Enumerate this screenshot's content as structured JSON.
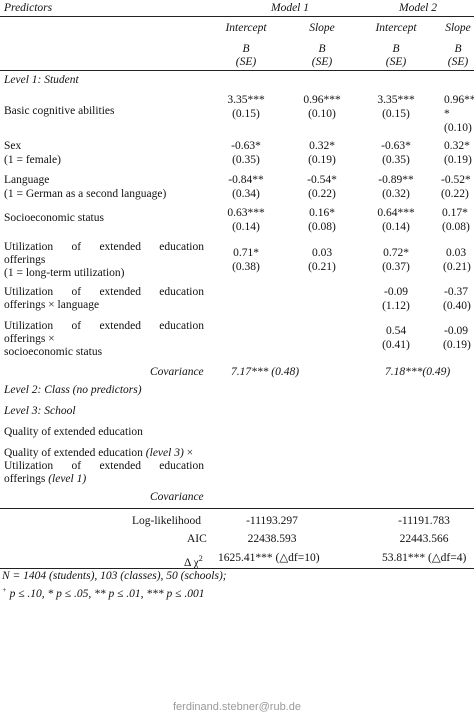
{
  "header": {
    "predictors": "Predictors",
    "models": [
      "Model 1",
      "Model 2"
    ],
    "sub": [
      "Intercept",
      "Slope",
      "Intercept",
      "Slope"
    ],
    "b_label": "B",
    "se_label": "(SE)"
  },
  "sections": {
    "level1": "Level 1: Student",
    "level2": "Level 2: Class (no predictors)",
    "level3": "Level 3: School"
  },
  "rows": {
    "basic": {
      "label": [
        "Basic cognitive abilities"
      ],
      "m1_int": [
        "3.35***",
        "(0.15)"
      ],
      "m1_slope": [
        "0.96***",
        "(0.10)"
      ],
      "m2_int": [
        "3.35***",
        "(0.15)"
      ],
      "m2_slope": [
        "0.96**",
        "*",
        "(0.10)"
      ]
    },
    "sex": {
      "label": [
        "Sex",
        "(1 = female)"
      ],
      "m1_int": [
        "-0.63*",
        "(0.35)"
      ],
      "m1_slope": [
        "0.32*",
        "(0.19)"
      ],
      "m2_int": [
        "-0.63*",
        "(0.35)"
      ],
      "m2_slope": [
        "0.32*",
        "(0.19)"
      ]
    },
    "lang": {
      "label": [
        "Language",
        "(1 = German as a second language)"
      ],
      "m1_int": [
        "-0.84**",
        "(0.34)"
      ],
      "m1_slope": [
        "-0.54*",
        "(0.22)"
      ],
      "m2_int": [
        "-0.89**",
        "(0.32)"
      ],
      "m2_slope": [
        "-0.52*",
        "(0.22)"
      ]
    },
    "ses": {
      "label": [
        "Socioeconomic status"
      ],
      "m1_int": [
        "0.63***",
        "(0.14)"
      ],
      "m1_slope": [
        "0.16*",
        "(0.08)"
      ],
      "m2_int": [
        "0.64***",
        "(0.14)"
      ],
      "m2_slope": [
        "0.17*",
        "(0.08)"
      ]
    },
    "util": {
      "label": [
        "Utilization of extended education",
        "offerings",
        "(1 = long-term utilization)"
      ],
      "m1_int": [
        "0.71*",
        "(0.38)"
      ],
      "m1_slope": [
        "0.03",
        "(0.21)"
      ],
      "m2_int": [
        "0.72*",
        "(0.37)"
      ],
      "m2_slope": [
        "0.03",
        "(0.21)"
      ]
    },
    "util_lang": {
      "label": [
        "Utilization of extended education",
        "offerings × language"
      ],
      "m2_int": [
        "-0.09",
        "(1.12)"
      ],
      "m2_slope": [
        "-0.37",
        "(0.40)"
      ]
    },
    "util_ses": {
      "label": [
        "Utilization of extended education",
        "offerings ×",
        "socioeconomic status"
      ],
      "m2_int": [
        "0.54",
        "(0.41)"
      ],
      "m2_slope": [
        "-0.09",
        "(0.19)"
      ]
    },
    "quality": {
      "label": [
        "Quality of extended education"
      ]
    },
    "quality_x": {
      "line1_a": "Quality of extended education ",
      "line1_b": "(level 3)",
      "line1_c": " ×",
      "line2": "Utilization of extended education",
      "line3_a": "offerings ",
      "line3_b": "(level 1)"
    }
  },
  "covariance": {
    "label": "Covariance",
    "m1": "7.17*** (0.48)",
    "m2": "7.18***(0.49)"
  },
  "fit": [
    {
      "label": "Log-likelihood",
      "m1": "-11193.297",
      "m2": "-11191.783"
    },
    {
      "label": "AIC",
      "m1": "22438.593",
      "m2": "22443.566"
    },
    {
      "label_symbol": "Δ χ",
      "label_sup": "2",
      "m1": "1625.41*** (△df=10)",
      "m2": "53.81*** (△df=4)"
    }
  ],
  "notes": {
    "n": "N = 1404 (students), 103 (classes), 50 (schools);",
    "sig_sup": "+",
    "sig": " p ≤ .10, * p ≤ .05, ** p ≤ .01, *** p ≤ .001"
  },
  "watermark": "ferdinand.stebner@rub.de"
}
